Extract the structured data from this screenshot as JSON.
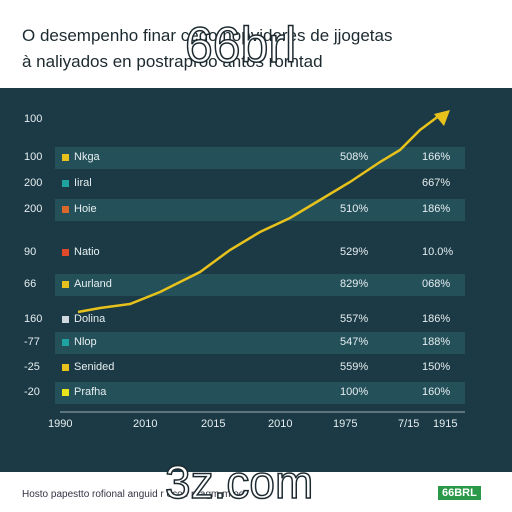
{
  "header": {
    "title_line1": "O desempenho finar cedo nopvidores de jjogetas",
    "title_line2": "à naliyados en postraproo antos rorntad",
    "overlay": "66brl"
  },
  "panel": {
    "top_label": "100",
    "rows": [
      {
        "y_label": "100",
        "name": "Nkga",
        "color": "#e8c21c",
        "middle": "508%",
        "right": "166%"
      },
      {
        "y_label": "200",
        "name": "Iiral",
        "color": "#1fa3a0",
        "right": "667%"
      },
      {
        "y_label": "200",
        "name": "Hoie",
        "color": "#d9682a",
        "middle": "510%",
        "right": "186%"
      },
      {
        "y_label": "90",
        "name": "Natio",
        "color": "#e04a2a",
        "middle": "529%",
        "right": "10.0%"
      },
      {
        "y_label": "66",
        "name": "Aurland",
        "color": "#e8c21c",
        "middle": "829%",
        "right": "068%"
      },
      {
        "y_label": "160",
        "name": "Dolina",
        "color": "#cfd8dc",
        "middle": "557%",
        "right": "186%"
      },
      {
        "y_label": "-77",
        "name": "Nlop",
        "color": "#1fa3a0",
        "middle": "547%",
        "right": "188%"
      },
      {
        "y_label": "-25",
        "name": "Senided",
        "color": "#e8c21c",
        "middle": "559%",
        "right": "150%"
      },
      {
        "y_label": "-20",
        "name": "Prafha",
        "color": "#e8e51c",
        "middle": "100%",
        "right": "160%"
      }
    ],
    "x_labels": [
      "1990",
      "2010",
      "2015",
      "2010",
      "1975",
      "7/15",
      "1915"
    ]
  },
  "footer": {
    "note": "Hosto papestto rofional anguid r ocoe pragm m oo",
    "overlay": "3z.com",
    "logo": "66BRL"
  }
}
